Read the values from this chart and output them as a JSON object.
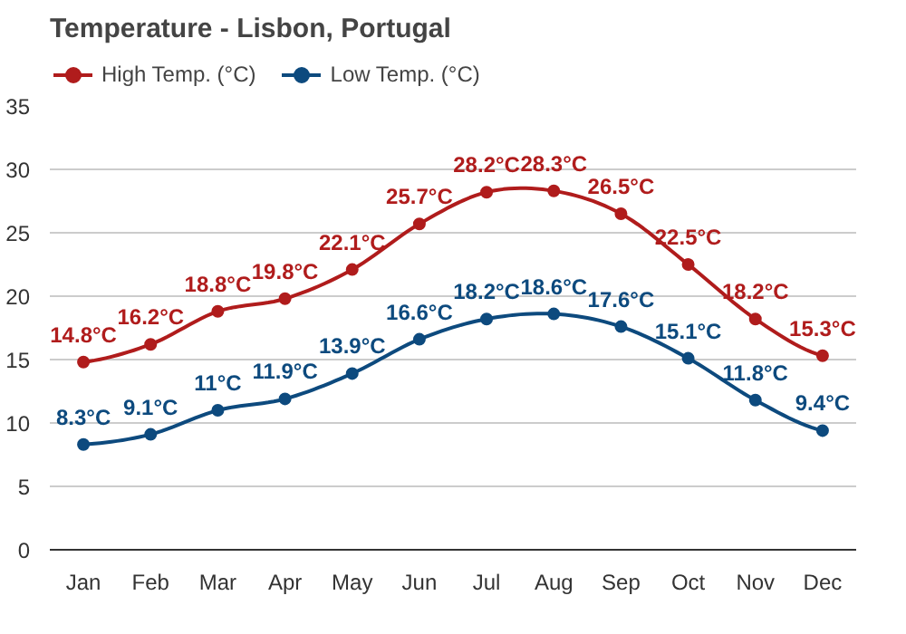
{
  "chart_data": {
    "type": "line",
    "title": "Temperature - Lisbon, Portugal",
    "categories": [
      "Jan",
      "Feb",
      "Mar",
      "Apr",
      "May",
      "Jun",
      "Jul",
      "Aug",
      "Sep",
      "Oct",
      "Nov",
      "Dec"
    ],
    "series": [
      {
        "name": "High Temp. (°C)",
        "color": "#b01c1c",
        "values": [
          14.8,
          16.2,
          18.8,
          19.8,
          22.1,
          25.7,
          28.2,
          28.3,
          26.5,
          22.5,
          18.2,
          15.3
        ],
        "value_labels": [
          "14.8°C",
          "16.2°C",
          "18.8°C",
          "19.8°C",
          "22.1°C",
          "25.7°C",
          "28.2°C",
          "28.3°C",
          "26.5°C",
          "22.5°C",
          "18.2°C",
          "15.3°C"
        ]
      },
      {
        "name": "Low Temp. (°C)",
        "color": "#0d4a7e",
        "values": [
          8.3,
          9.1,
          11,
          11.9,
          13.9,
          16.6,
          18.2,
          18.6,
          17.6,
          15.1,
          11.8,
          9.4
        ],
        "value_labels": [
          "8.3°C",
          "9.1°C",
          "11°C",
          "11.9°C",
          "13.9°C",
          "16.6°C",
          "18.2°C",
          "18.6°C",
          "17.6°C",
          "15.1°C",
          "11.8°C",
          "9.4°C"
        ]
      }
    ],
    "ylim": [
      0,
      35
    ],
    "yticks": [
      0,
      5,
      10,
      15,
      20,
      25,
      30,
      35
    ],
    "grid": "y",
    "legend": "top left",
    "marker": "circle",
    "line_style": "solid"
  }
}
